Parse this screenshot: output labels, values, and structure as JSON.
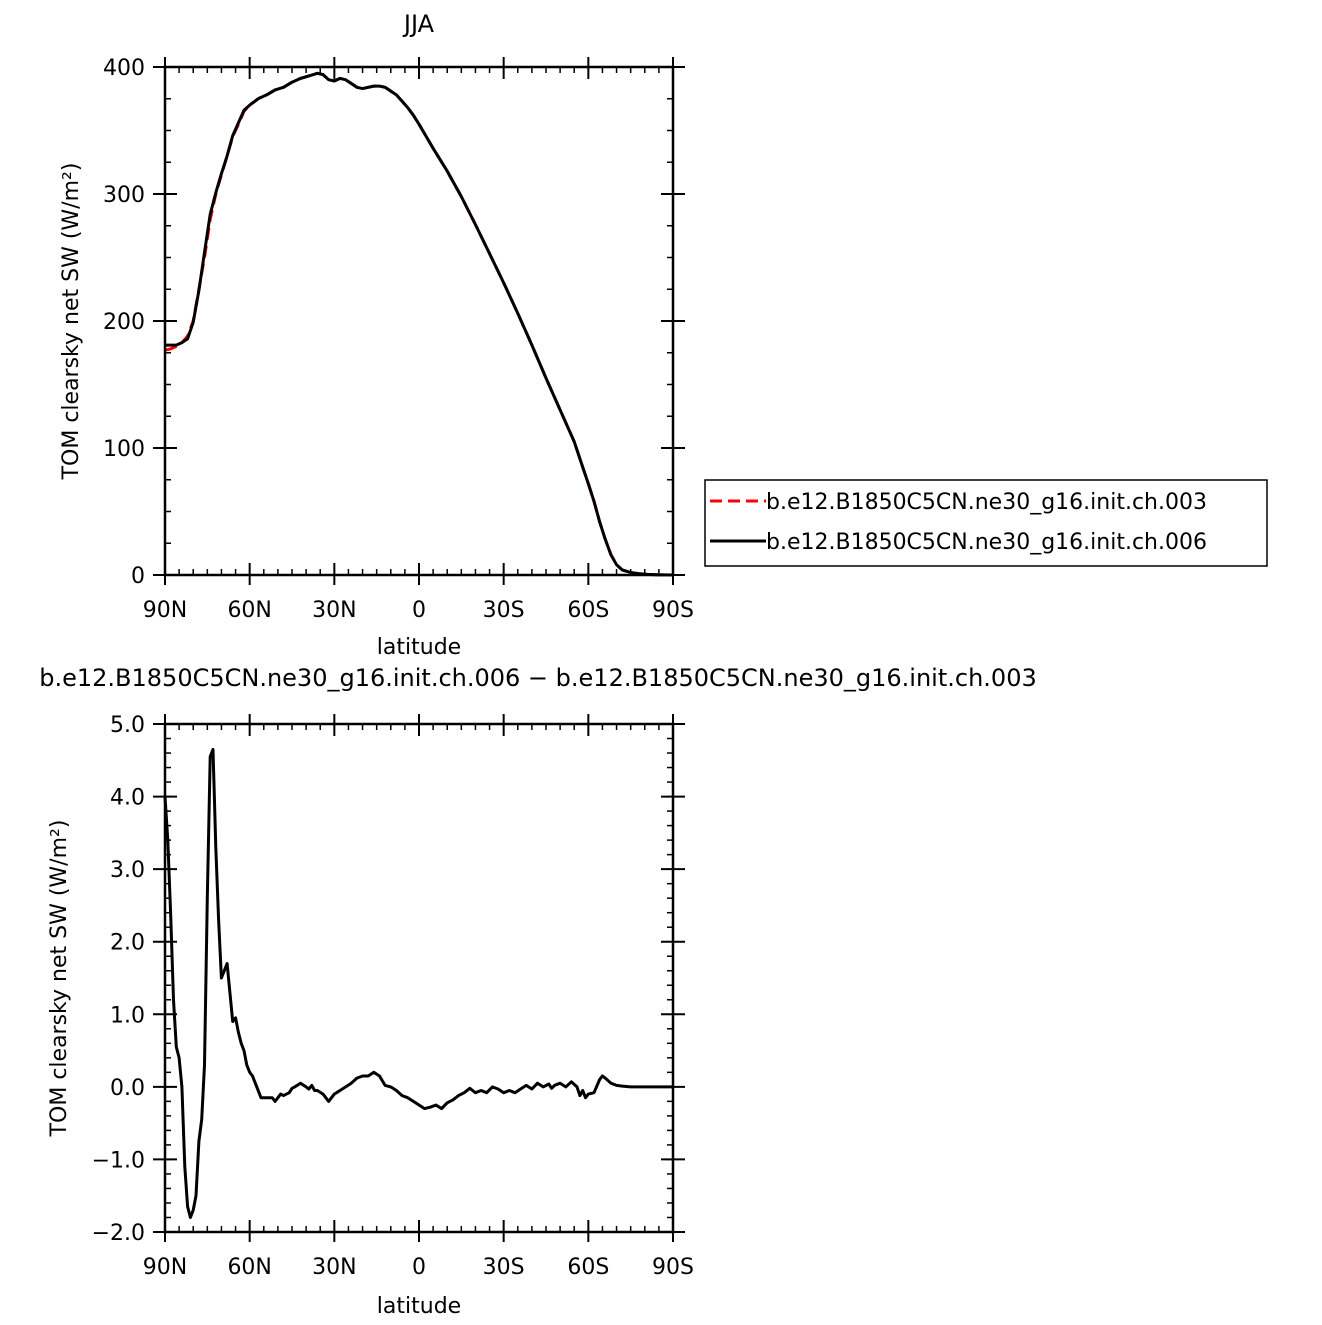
{
  "chart_data": [
    {
      "type": "line",
      "title": "JJA",
      "xlabel": "latitude",
      "ylabel": "TOM clearsky net SW (W/m²)",
      "xlim": [
        90,
        -90
      ],
      "ylim": [
        0,
        400
      ],
      "xticks": [
        {
          "value": 90,
          "label": "90N"
        },
        {
          "value": 60,
          "label": "60N"
        },
        {
          "value": 30,
          "label": "30N"
        },
        {
          "value": 0,
          "label": "0"
        },
        {
          "value": -30,
          "label": "30S"
        },
        {
          "value": -60,
          "label": "60S"
        },
        {
          "value": -90,
          "label": "90S"
        }
      ],
      "yticks": [
        {
          "value": 0,
          "label": "0"
        },
        {
          "value": 100,
          "label": "100"
        },
        {
          "value": 200,
          "label": "200"
        },
        {
          "value": 300,
          "label": "300"
        },
        {
          "value": 400,
          "label": "400"
        }
      ],
      "legend": {
        "placement": "right",
        "entries": [
          {
            "label": "b.e12.B1850C5CN.ne30_g16.init.ch.003",
            "color": "#ff0000",
            "dash": "dashed"
          },
          {
            "label": "b.e12.B1850C5CN.ne30_g16.init.ch.006",
            "color": "#000000",
            "dash": "solid"
          }
        ]
      },
      "series": [
        {
          "name": "b.e12.B1850C5CN.ne30_g16.init.ch.003",
          "color": "#ff0000",
          "dash": "dashed",
          "x": [
            90,
            88,
            86,
            84,
            82,
            80,
            78,
            76,
            74,
            72,
            70,
            68,
            66,
            64,
            62,
            60,
            57,
            54,
            51,
            48,
            45,
            42,
            39,
            36,
            34,
            32,
            30,
            28,
            26,
            24,
            22,
            20,
            18,
            16,
            14,
            12,
            10,
            8,
            6,
            4,
            2,
            0,
            -5,
            -10,
            -15,
            -20,
            -25,
            -30,
            -35,
            -40,
            -45,
            -50,
            -55,
            -58,
            -60,
            -62,
            -64,
            -66,
            -68,
            -70,
            -72,
            -75,
            -78,
            -81,
            -84,
            -87,
            -90
          ],
          "values": [
            177,
            178,
            180,
            183,
            188,
            200,
            225,
            250,
            280,
            300,
            315,
            330,
            345,
            355,
            365,
            370,
            375,
            378,
            382,
            384,
            388,
            391,
            393,
            395,
            394,
            390,
            389,
            391,
            390,
            387,
            384,
            383,
            384,
            385,
            385,
            384,
            381,
            378,
            373,
            368,
            362,
            355,
            336,
            318,
            298,
            276,
            253,
            230,
            206,
            181,
            155,
            130,
            105,
            85,
            72,
            58,
            42,
            28,
            16,
            8,
            4,
            2,
            1,
            0.5,
            0.2,
            0.1,
            0
          ],
          "y": [
            177,
            178,
            180,
            183,
            188,
            200,
            225,
            250,
            280,
            300,
            315,
            330,
            345,
            355,
            365,
            370,
            375,
            378,
            382,
            384,
            388,
            391,
            393,
            395,
            394,
            390,
            389,
            391,
            390,
            387,
            384,
            383,
            384,
            385,
            385,
            384,
            381,
            378,
            373,
            368,
            362,
            355,
            336,
            318,
            298,
            276,
            253,
            230,
            206,
            181,
            155,
            130,
            105,
            85,
            72,
            58,
            42,
            28,
            16,
            8,
            4,
            2,
            1,
            0.5,
            0.2,
            0.1,
            0
          ]
        },
        {
          "name": "b.e12.B1850C5CN.ne30_g16.init.ch.006",
          "color": "#000000",
          "dash": "solid",
          "x": [
            90,
            88,
            86,
            84,
            82,
            80,
            78,
            76,
            74,
            72,
            70,
            68,
            66,
            64,
            62,
            60,
            57,
            54,
            51,
            48,
            45,
            42,
            39,
            36,
            34,
            32,
            30,
            28,
            26,
            24,
            22,
            20,
            18,
            16,
            14,
            12,
            10,
            8,
            6,
            4,
            2,
            0,
            -5,
            -10,
            -15,
            -20,
            -25,
            -30,
            -35,
            -40,
            -45,
            -50,
            -55,
            -58,
            -60,
            -62,
            -64,
            -66,
            -68,
            -70,
            -72,
            -75,
            -78,
            -81,
            -84,
            -87,
            -90
          ],
          "values": [
            181,
            181,
            181,
            183,
            186,
            199,
            224,
            254,
            284,
            301,
            316,
            330,
            346,
            356,
            366,
            370,
            375,
            378,
            382,
            384,
            388,
            391,
            393,
            395,
            394,
            390,
            389,
            391,
            390,
            387,
            384,
            383,
            384,
            385,
            385,
            384,
            381,
            378,
            373,
            368,
            362,
            355,
            336,
            318,
            298,
            276,
            253,
            230,
            206,
            181,
            155,
            130,
            105,
            85,
            72,
            58,
            42,
            28,
            16,
            8,
            4,
            2,
            1,
            0.5,
            0.2,
            0.1,
            0
          ],
          "y": [
            181,
            181,
            181,
            183,
            186,
            199,
            224,
            254,
            284,
            301,
            316,
            330,
            346,
            356,
            366,
            370,
            375,
            378,
            382,
            384,
            388,
            391,
            393,
            395,
            394,
            390,
            389,
            391,
            390,
            387,
            384,
            383,
            384,
            385,
            385,
            384,
            381,
            378,
            373,
            368,
            362,
            355,
            336,
            318,
            298,
            276,
            253,
            230,
            206,
            181,
            155,
            130,
            105,
            85,
            72,
            58,
            42,
            28,
            16,
            8,
            4,
            2,
            1,
            0.5,
            0.2,
            0.1,
            0
          ]
        }
      ]
    },
    {
      "type": "line",
      "title": "b.e12.B1850C5CN.ne30_g16.init.ch.006 − b.e12.B1850C5CN.ne30_g16.init.ch.003",
      "xlabel": "latitude",
      "ylabel": "TOM clearsky net SW (W/m²)",
      "xlim": [
        90,
        -90
      ],
      "ylim": [
        -2.0,
        5.0
      ],
      "xticks": [
        {
          "value": 90,
          "label": "90N"
        },
        {
          "value": 60,
          "label": "60N"
        },
        {
          "value": 30,
          "label": "30N"
        },
        {
          "value": 0,
          "label": "0"
        },
        {
          "value": -30,
          "label": "30S"
        },
        {
          "value": -60,
          "label": "60S"
        },
        {
          "value": -90,
          "label": "90S"
        }
      ],
      "yticks": [
        {
          "value": -2.0,
          "label": "−2.0"
        },
        {
          "value": -1.0,
          "label": "−1.0"
        },
        {
          "value": 0.0,
          "label": "0.0"
        },
        {
          "value": 1.0,
          "label": "1.0"
        },
        {
          "value": 2.0,
          "label": "2.0"
        },
        {
          "value": 3.0,
          "label": "3.0"
        },
        {
          "value": 4.0,
          "label": "4.0"
        },
        {
          "value": 5.0,
          "label": "5.0"
        }
      ],
      "series": [
        {
          "color": "#000000",
          "dash": "solid",
          "x": [
            90,
            89,
            88,
            87,
            86,
            85,
            84,
            83,
            82,
            81,
            80,
            79,
            78,
            77,
            76,
            75,
            74,
            73,
            72,
            71,
            70,
            69,
            68,
            67,
            66,
            65,
            64,
            63,
            62,
            61,
            60,
            59,
            58,
            56,
            54,
            52,
            51,
            50,
            49,
            48,
            46,
            45,
            44,
            42,
            40,
            39,
            38,
            37,
            36,
            34,
            32,
            31,
            30,
            28,
            26,
            24,
            22,
            20,
            18,
            16,
            14,
            12,
            10,
            8,
            6,
            4,
            2,
            0,
            -2,
            -4,
            -6,
            -8,
            -10,
            -12,
            -14,
            -16,
            -18,
            -20,
            -22,
            -24,
            -26,
            -28,
            -30,
            -32,
            -34,
            -36,
            -38,
            -40,
            -42,
            -44,
            -46,
            -47,
            -48,
            -50,
            -52,
            -54,
            -56,
            -57,
            -58,
            -59,
            -60,
            -62,
            -64,
            -65,
            -66,
            -68,
            -70,
            -72,
            -75,
            -80,
            -85,
            -90
          ],
          "values": [
            4.0,
            3.4,
            2.4,
            1.2,
            0.55,
            0.4,
            0.0,
            -1.1,
            -1.65,
            -1.8,
            -1.7,
            -1.5,
            -0.75,
            -0.45,
            0.3,
            2.6,
            4.55,
            4.65,
            3.3,
            2.3,
            1.5,
            1.6,
            1.7,
            1.3,
            0.9,
            0.95,
            0.75,
            0.6,
            0.5,
            0.3,
            0.2,
            0.15,
            0.05,
            -0.15,
            -0.15,
            -0.15,
            -0.2,
            -0.15,
            -0.1,
            -0.12,
            -0.08,
            -0.02,
            0.0,
            0.05,
            0.0,
            -0.03,
            0.02,
            -0.05,
            -0.05,
            -0.1,
            -0.2,
            -0.15,
            -0.1,
            -0.05,
            0.0,
            0.05,
            0.12,
            0.15,
            0.15,
            0.2,
            0.15,
            0.02,
            0.0,
            -0.05,
            -0.12,
            -0.15,
            -0.2,
            -0.25,
            -0.3,
            -0.28,
            -0.25,
            -0.3,
            -0.22,
            -0.18,
            -0.12,
            -0.08,
            -0.02,
            -0.08,
            -0.05,
            -0.08,
            0.0,
            -0.03,
            -0.08,
            -0.05,
            -0.08,
            -0.03,
            0.02,
            -0.03,
            0.05,
            0.0,
            0.04,
            -0.02,
            0.02,
            0.05,
            0.0,
            0.07,
            0.0,
            -0.12,
            -0.05,
            -0.15,
            -0.1,
            -0.08,
            0.1,
            0.15,
            0.12,
            0.05,
            0.02,
            0.01,
            0.0,
            0.0,
            0.0,
            0.0
          ],
          "y": [
            4.0,
            3.4,
            2.4,
            1.2,
            0.55,
            0.4,
            0.0,
            -1.1,
            -1.65,
            -1.8,
            -1.7,
            -1.5,
            -0.75,
            -0.45,
            0.3,
            2.6,
            4.55,
            4.65,
            3.3,
            2.3,
            1.5,
            1.6,
            1.7,
            1.3,
            0.9,
            0.95,
            0.75,
            0.6,
            0.5,
            0.3,
            0.2,
            0.15,
            0.05,
            -0.15,
            -0.15,
            -0.15,
            -0.2,
            -0.15,
            -0.1,
            -0.12,
            -0.08,
            -0.02,
            0.0,
            0.05,
            0.0,
            -0.03,
            0.02,
            -0.05,
            -0.05,
            -0.1,
            -0.2,
            -0.15,
            -0.1,
            -0.05,
            0.0,
            0.05,
            0.12,
            0.15,
            0.15,
            0.2,
            0.15,
            0.02,
            0.0,
            -0.05,
            -0.12,
            -0.15,
            -0.2,
            -0.25,
            -0.3,
            -0.28,
            -0.25,
            -0.3,
            -0.22,
            -0.18,
            -0.12,
            -0.08,
            -0.02,
            -0.08,
            -0.05,
            -0.08,
            0.0,
            -0.03,
            -0.08,
            -0.05,
            -0.08,
            -0.03,
            0.02,
            -0.03,
            0.05,
            0.0,
            0.04,
            -0.02,
            0.02,
            0.05,
            0.0,
            0.07,
            0.0,
            -0.12,
            -0.05,
            -0.15,
            -0.1,
            -0.08,
            0.1,
            0.15,
            0.12,
            0.05,
            0.02,
            0.01,
            0.0,
            0.0,
            0.0,
            0.0
          ]
        }
      ]
    }
  ]
}
